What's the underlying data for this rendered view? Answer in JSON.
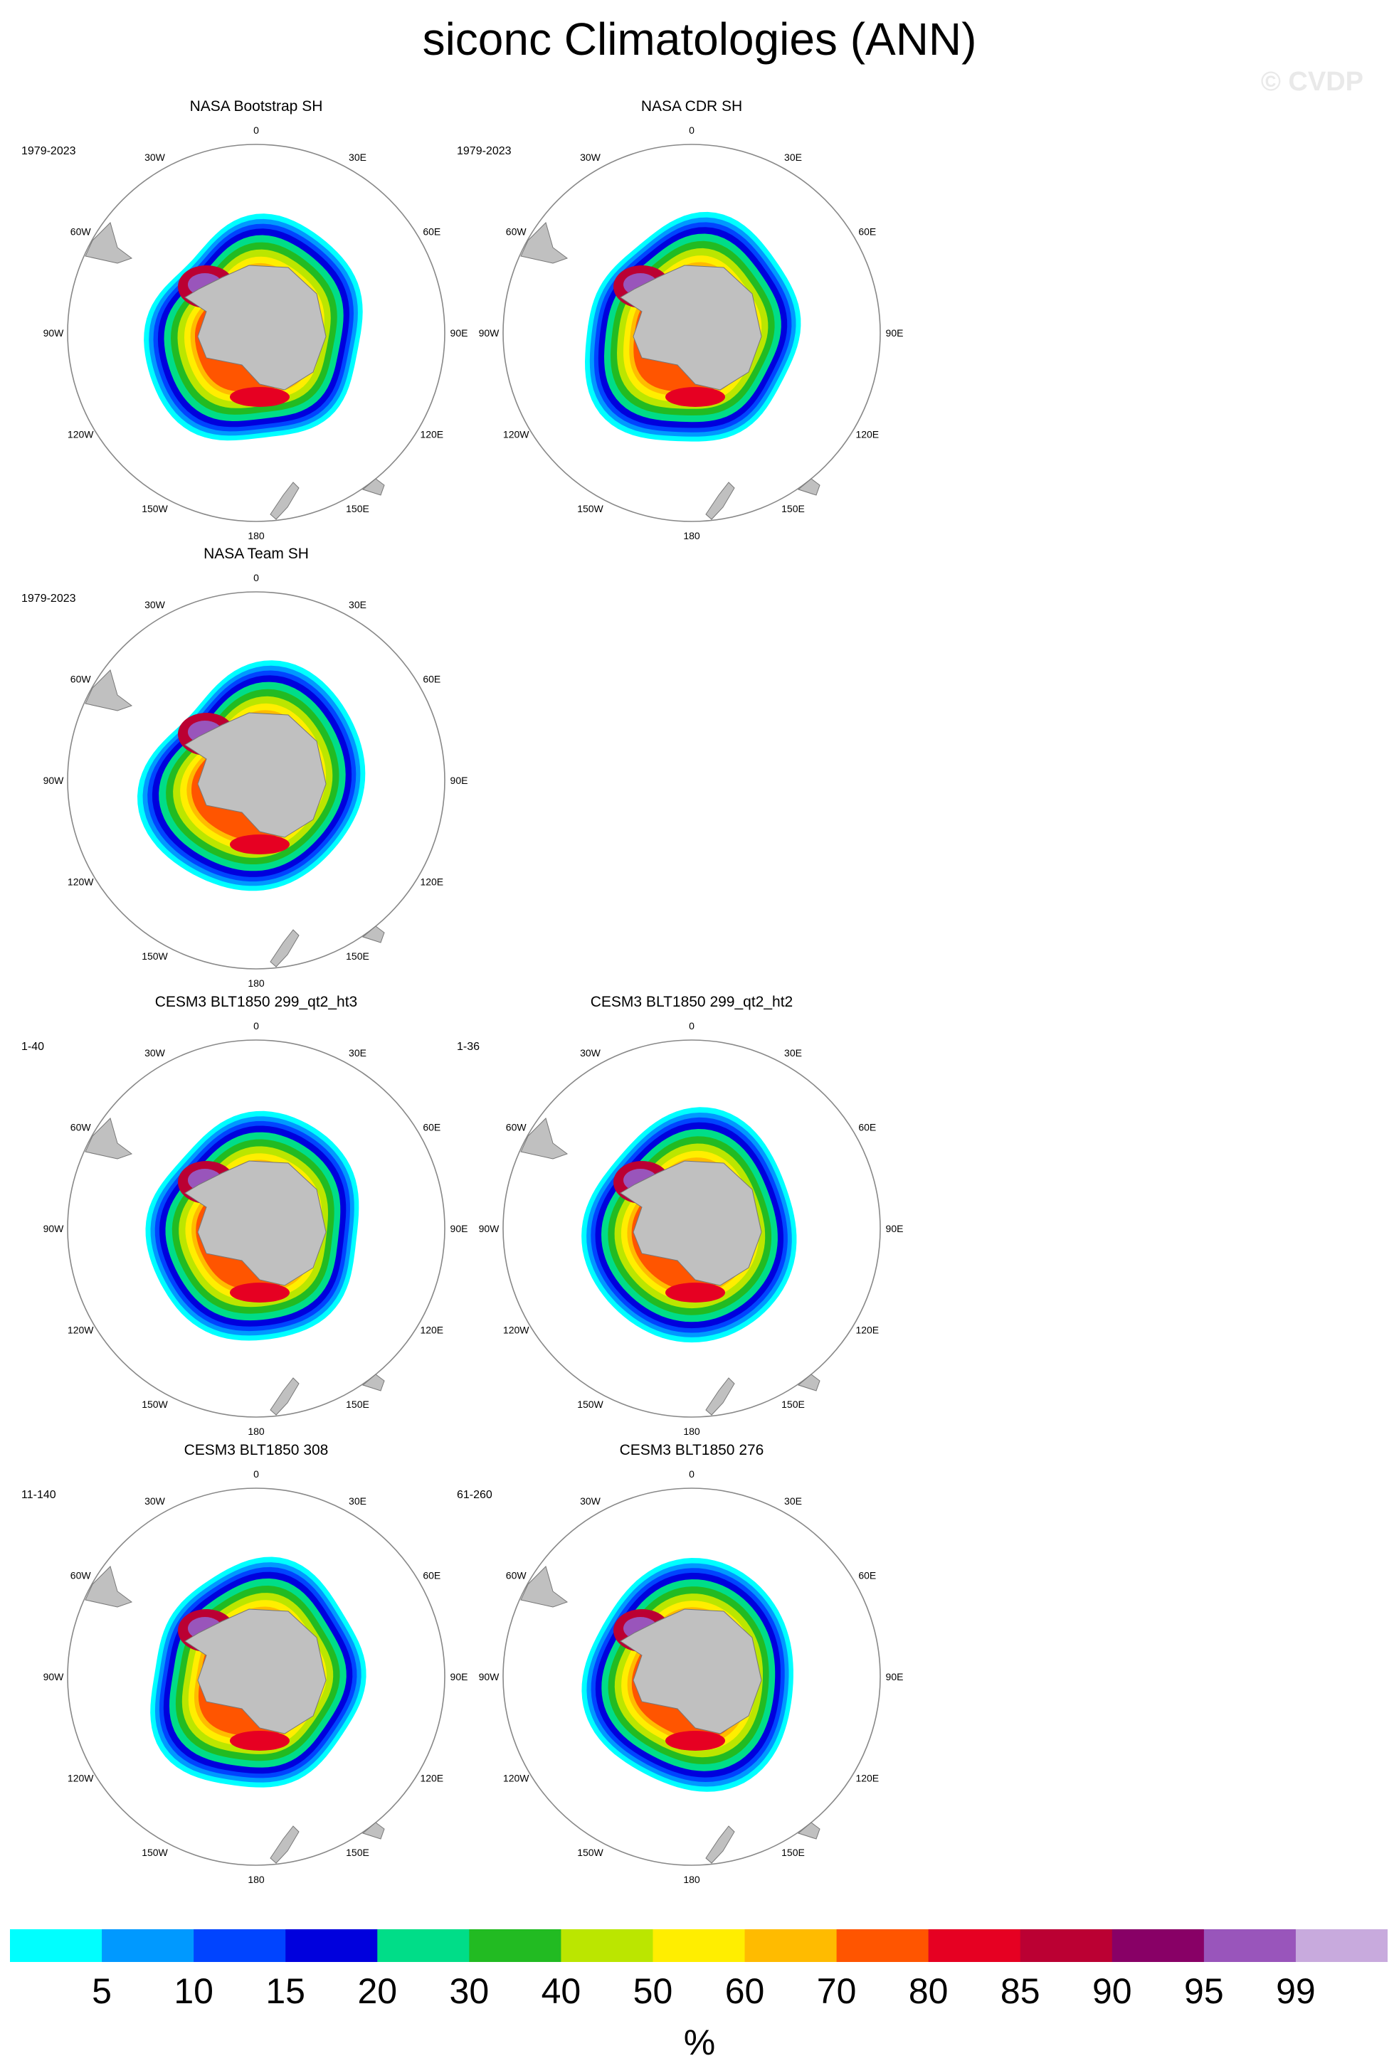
{
  "title": "siconc Climatologies (ANN)",
  "watermark": "© CVDP",
  "lon_labels": [
    "0",
    "30E",
    "60E",
    "90E",
    "120E",
    "150E",
    "180",
    "150W",
    "120W",
    "90W",
    "60W",
    "30W"
  ],
  "panels": [
    {
      "title": "NASA Bootstrap SH",
      "period": "1979-2023"
    },
    {
      "title": "NASA CDR SH",
      "period": "1979-2023"
    },
    {
      "title": "NASA Team SH",
      "period": "1979-2023"
    },
    {
      "title": "CESM3 BLT1850 299_qt2_ht3",
      "period": "1-40"
    },
    {
      "title": "CESM3 BLT1850 299_qt2_ht2",
      "period": "1-36"
    },
    {
      "title": "CESM3 BLT1850 308",
      "period": "11-140"
    },
    {
      "title": "CESM3 BLT1850 276",
      "period": "61-260"
    }
  ],
  "colorbar": {
    "unit": "%",
    "levels": [
      "5",
      "10",
      "15",
      "20",
      "30",
      "40",
      "50",
      "60",
      "70",
      "80",
      "85",
      "90",
      "95",
      "99"
    ],
    "colors": [
      "#00ffff",
      "#0099ff",
      "#0044ff",
      "#0000dd",
      "#00dd88",
      "#22bb22",
      "#bbe600",
      "#ffee00",
      "#ffbb00",
      "#ff5500",
      "#e60022",
      "#bb0033",
      "#880066",
      "#9955bb",
      "#c8aadd"
    ]
  },
  "chart_data": {
    "type": "heatmap",
    "projection": "south polar stereographic",
    "variable": "siconc",
    "season": "ANN",
    "units": "%",
    "contour_levels": [
      5,
      10,
      15,
      20,
      30,
      40,
      50,
      60,
      70,
      80,
      85,
      90,
      95,
      99
    ]
  }
}
